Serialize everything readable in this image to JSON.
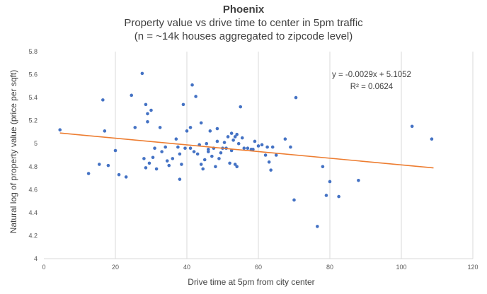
{
  "chart_data": {
    "type": "scatter",
    "title": "Phoenix",
    "subtitle_lines": [
      "Property value vs drive time to center in 5pm traffic",
      "(n = ~14k houses aggregated to zipcode level)"
    ],
    "xlabel": "Drive time at 5pm from city center",
    "ylabel": "Natural log of property value (price per sqft)",
    "xlim": [
      0,
      120
    ],
    "ylim": [
      4,
      5.8
    ],
    "x_ticks": [
      0,
      20,
      40,
      60,
      80,
      100,
      120
    ],
    "y_ticks": [
      4,
      4.2,
      4.4,
      4.6,
      4.8,
      5,
      5.2,
      5.4,
      5.6,
      5.8
    ],
    "y_tick_labels": [
      "4",
      "4.2",
      "4.4",
      "4.6",
      "4.8",
      "5",
      "5.2",
      "5.4",
      "5.6",
      "5.8"
    ],
    "grid": "vertical",
    "point_color": "#4472c4",
    "trendline_color": "#ed7d31",
    "trendline": {
      "slope": -0.0029,
      "intercept": 5.1052,
      "x_range": [
        4.5,
        109
      ]
    },
    "annotation_lines": [
      "y = -0.0029x + 5.1052",
      "R² = 0.0624"
    ],
    "points": [
      [
        4.5,
        5.12
      ],
      [
        12.5,
        4.74
      ],
      [
        15.5,
        4.82
      ],
      [
        16.5,
        5.38
      ],
      [
        17,
        5.11
      ],
      [
        18,
        4.81
      ],
      [
        20,
        4.94
      ],
      [
        21,
        4.73
      ],
      [
        23,
        4.71
      ],
      [
        24.5,
        5.42
      ],
      [
        25.5,
        5.14
      ],
      [
        27.5,
        5.61
      ],
      [
        28,
        4.87
      ],
      [
        28.5,
        5.34
      ],
      [
        29,
        5.26
      ],
      [
        29,
        5.19
      ],
      [
        28.5,
        4.79
      ],
      [
        29.5,
        4.83
      ],
      [
        30,
        5.29
      ],
      [
        30.5,
        4.88
      ],
      [
        31,
        4.96
      ],
      [
        31.5,
        4.78
      ],
      [
        32.5,
        5.14
      ],
      [
        33,
        4.93
      ],
      [
        34,
        4.97
      ],
      [
        34.5,
        4.85
      ],
      [
        35,
        4.81
      ],
      [
        36,
        4.87
      ],
      [
        37,
        5.04
      ],
      [
        37.5,
        4.97
      ],
      [
        38,
        4.69
      ],
      [
        38,
        4.91
      ],
      [
        38.5,
        4.82
      ],
      [
        39,
        5.34
      ],
      [
        39.5,
        4.96
      ],
      [
        40,
        5.11
      ],
      [
        41,
        5.14
      ],
      [
        41.5,
        5.51
      ],
      [
        41,
        4.96
      ],
      [
        42,
        4.93
      ],
      [
        42.5,
        5.41
      ],
      [
        43,
        4.91
      ],
      [
        43.5,
        4.99
      ],
      [
        44,
        5.18
      ],
      [
        44,
        4.82
      ],
      [
        44.5,
        4.78
      ],
      [
        45,
        4.86
      ],
      [
        45.5,
        5.0
      ],
      [
        46,
        4.93
      ],
      [
        46,
        4.95
      ],
      [
        46.5,
        5.11
      ],
      [
        47,
        4.89
      ],
      [
        47.5,
        4.96
      ],
      [
        48,
        4.8
      ],
      [
        48.5,
        5.02
      ],
      [
        48.5,
        5.13
      ],
      [
        49,
        4.87
      ],
      [
        49.5,
        4.92
      ],
      [
        50,
        4.96
      ],
      [
        50.5,
        5.01
      ],
      [
        51,
        4.96
      ],
      [
        51.5,
        5.06
      ],
      [
        52,
        4.83
      ],
      [
        52.5,
        5.09
      ],
      [
        52.5,
        4.94
      ],
      [
        53,
        5.03
      ],
      [
        53.5,
        5.06
      ],
      [
        53.5,
        4.82
      ],
      [
        54,
        4.8
      ],
      [
        54,
        5.08
      ],
      [
        54.5,
        5.0
      ],
      [
        55,
        5.32
      ],
      [
        55.5,
        5.05
      ],
      [
        56,
        4.96
      ],
      [
        57,
        4.96
      ],
      [
        58,
        4.95
      ],
      [
        58.5,
        4.95
      ],
      [
        59,
        5.02
      ],
      [
        60,
        4.98
      ],
      [
        61,
        4.99
      ],
      [
        62,
        4.9
      ],
      [
        62.5,
        4.97
      ],
      [
        63,
        4.84
      ],
      [
        63.5,
        4.77
      ],
      [
        64,
        4.97
      ],
      [
        65,
        4.9
      ],
      [
        67.5,
        5.04
      ],
      [
        69,
        4.97
      ],
      [
        70,
        4.51
      ],
      [
        70.5,
        5.4
      ],
      [
        76.5,
        4.28
      ],
      [
        78,
        4.8
      ],
      [
        79,
        4.55
      ],
      [
        80,
        4.67
      ],
      [
        82.5,
        4.54
      ],
      [
        88,
        4.68
      ],
      [
        103,
        5.15
      ],
      [
        108.5,
        5.04
      ]
    ]
  }
}
